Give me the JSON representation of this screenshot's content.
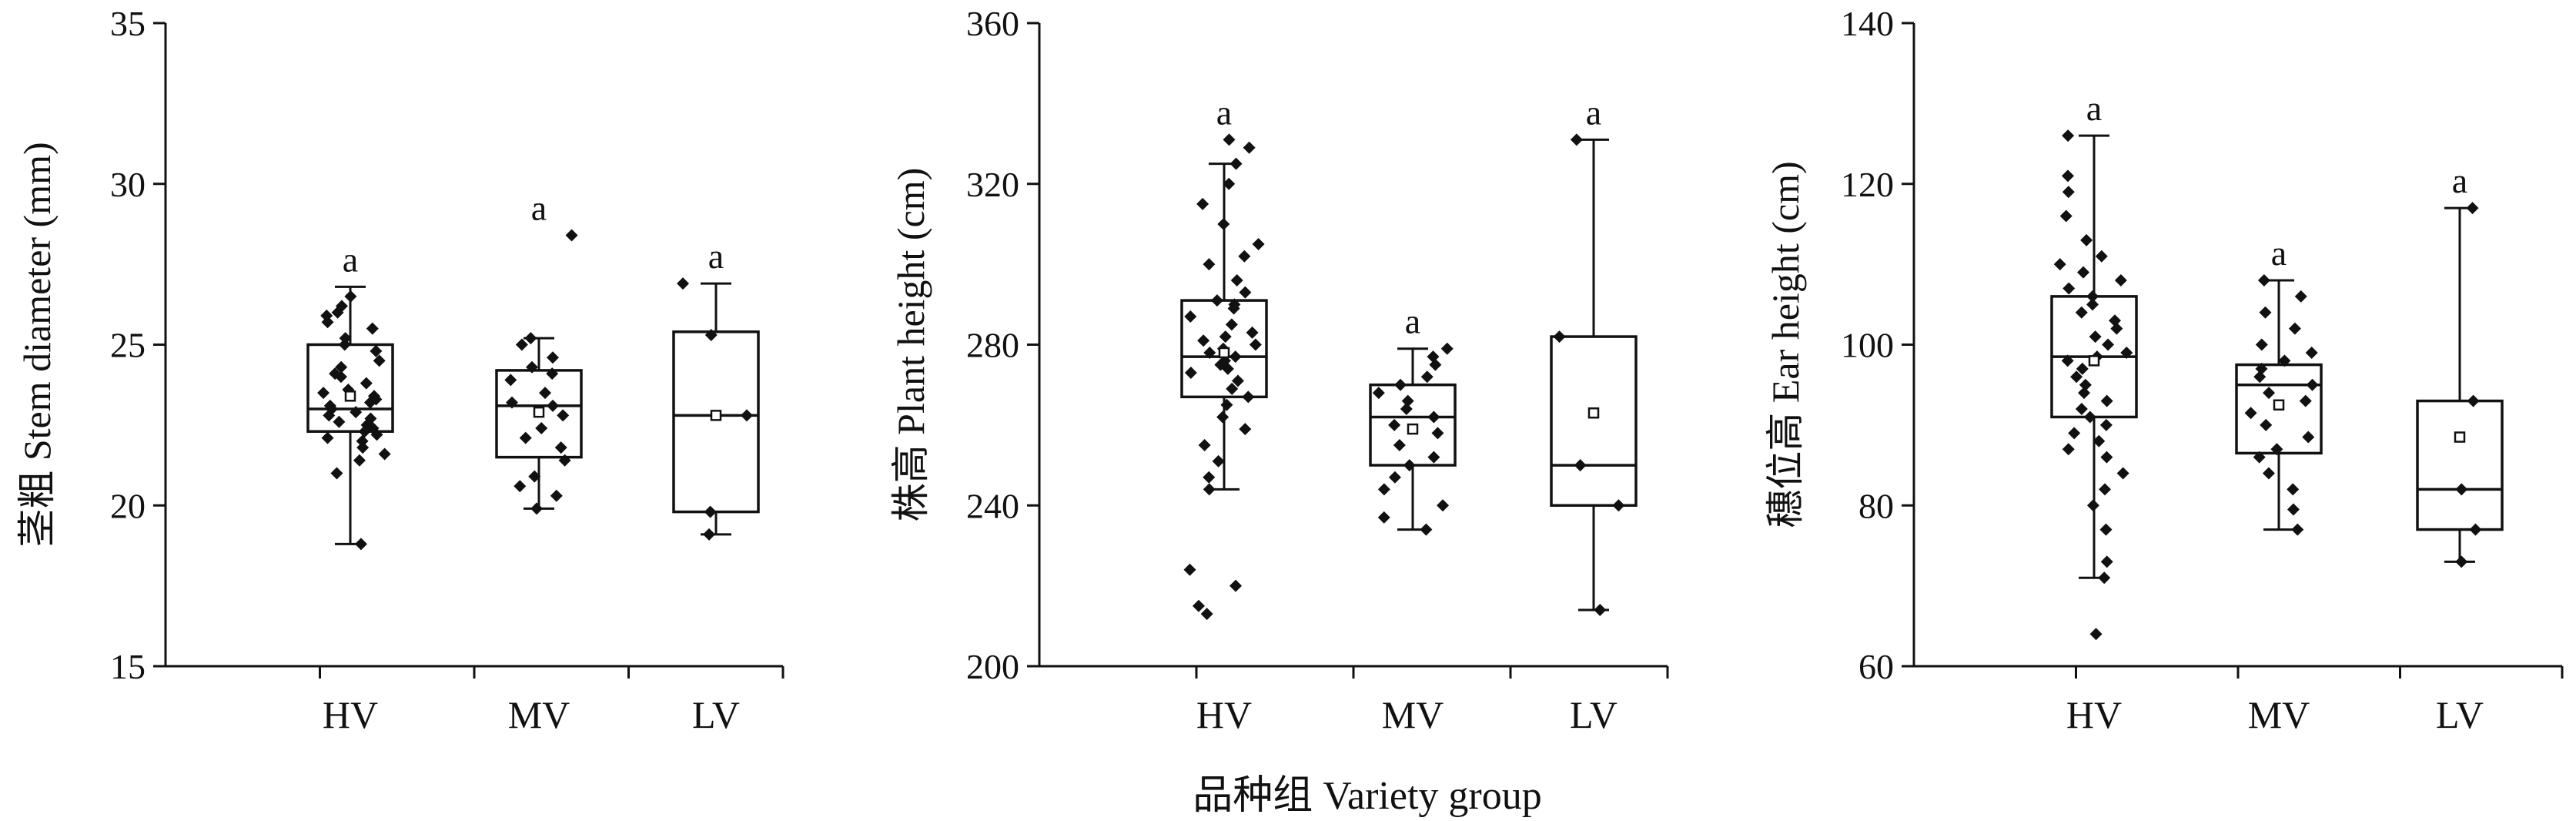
{
  "x_title": "品种组 Variety group",
  "chart_data": [
    {
      "type": "box",
      "ylabel": "茎粗 Stem diameter (mm)",
      "ylim": [
        15,
        35
      ],
      "yticks": [
        15,
        20,
        25,
        30,
        35
      ],
      "categories": [
        "HV",
        "MV",
        "LV"
      ],
      "groups": [
        {
          "name": "HV",
          "whisker_low": 18.8,
          "q1": 22.3,
          "median": 23.0,
          "q3": 25.0,
          "whisker_high": 26.8,
          "mean": 23.4,
          "letter": "a",
          "points": [
            18.8,
            21.0,
            21.4,
            21.6,
            21.8,
            22.0,
            22.1,
            22.2,
            22.3,
            22.4,
            22.5,
            22.6,
            22.7,
            22.8,
            22.9,
            23.0,
            23.1,
            23.2,
            23.3,
            23.4,
            23.5,
            23.6,
            23.8,
            24.0,
            24.1,
            24.3,
            24.5,
            24.8,
            25.0,
            25.2,
            25.5,
            25.7,
            25.9,
            26.0,
            26.2,
            26.5
          ]
        },
        {
          "name": "MV",
          "whisker_low": 19.9,
          "q1": 21.5,
          "median": 23.1,
          "q3": 24.2,
          "whisker_high": 25.2,
          "mean": 22.9,
          "letter": "a",
          "points": [
            28.4,
            19.9,
            20.3,
            20.6,
            20.9,
            21.4,
            21.8,
            22.1,
            22.4,
            22.8,
            23.1,
            23.2,
            23.5,
            23.9,
            24.1,
            24.3,
            24.6,
            25.0,
            25.2
          ]
        },
        {
          "name": "LV",
          "whisker_low": 19.1,
          "q1": 19.8,
          "median": 22.8,
          "q3": 25.4,
          "whisker_high": 26.9,
          "mean": 22.8,
          "letter": "a",
          "points": [
            19.1,
            19.8,
            22.8,
            25.3,
            26.9
          ]
        }
      ]
    },
    {
      "type": "box",
      "ylabel": "株高 Plant height (cm)",
      "ylim": [
        200,
        360
      ],
      "yticks": [
        200,
        240,
        280,
        320,
        360
      ],
      "categories": [
        "HV",
        "MV",
        "LV"
      ],
      "groups": [
        {
          "name": "HV",
          "whisker_low": 244,
          "q1": 267,
          "median": 277,
          "q3": 291,
          "whisker_high": 325,
          "mean": 278,
          "letter": "a",
          "points": [
            213,
            215,
            220,
            224,
            244,
            247,
            251,
            255,
            259,
            262,
            265,
            267,
            269,
            271,
            273,
            274,
            275,
            276,
            277,
            278,
            279,
            280,
            281,
            282,
            283,
            285,
            287,
            289,
            290,
            291,
            293,
            296,
            300,
            302,
            305,
            310,
            315,
            320,
            325,
            329,
            331
          ]
        },
        {
          "name": "MV",
          "whisker_low": 234,
          "q1": 250,
          "median": 262,
          "q3": 270,
          "whisker_high": 279,
          "mean": 259,
          "letter": "a",
          "points": [
            234,
            237,
            240,
            244,
            247,
            250,
            252,
            255,
            258,
            260,
            262,
            264,
            266,
            268,
            270,
            272,
            275,
            277,
            279
          ]
        },
        {
          "name": "LV",
          "whisker_low": 214,
          "q1": 240,
          "median": 250,
          "q3": 282,
          "whisker_high": 331,
          "mean": 263,
          "letter": "a",
          "points": [
            214,
            240,
            250,
            282,
            331
          ]
        }
      ]
    },
    {
      "type": "box",
      "ylabel": "穗位高 Ear height (cm)",
      "ylim": [
        60,
        140
      ],
      "yticks": [
        60,
        80,
        100,
        120,
        140
      ],
      "categories": [
        "HV",
        "MV",
        "LV"
      ],
      "groups": [
        {
          "name": "HV",
          "whisker_low": 71,
          "q1": 91,
          "median": 98.5,
          "q3": 106,
          "whisker_high": 126,
          "mean": 98,
          "letter": "a",
          "points": [
            64,
            71,
            73,
            77,
            80,
            82,
            84,
            86,
            87,
            88,
            89,
            90,
            91,
            92,
            93,
            94,
            95,
            96,
            97,
            98,
            98.5,
            99,
            100,
            101,
            102,
            103,
            104,
            105,
            106,
            107,
            108,
            109,
            110,
            111,
            113,
            116,
            119,
            121,
            126
          ]
        },
        {
          "name": "MV",
          "whisker_low": 77,
          "q1": 86.5,
          "median": 95,
          "q3": 97.5,
          "whisker_high": 108,
          "mean": 92.5,
          "letter": "a",
          "points": [
            77,
            79.5,
            82,
            84,
            86,
            87,
            88.5,
            90,
            91.5,
            93,
            94,
            95,
            96,
            97,
            98,
            99,
            100,
            102,
            104,
            106,
            108
          ]
        },
        {
          "name": "LV",
          "whisker_low": 73,
          "q1": 77,
          "median": 82,
          "q3": 93,
          "whisker_high": 117,
          "mean": 88.5,
          "letter": "a",
          "points": [
            73,
            77,
            82,
            93,
            117
          ]
        }
      ]
    }
  ]
}
